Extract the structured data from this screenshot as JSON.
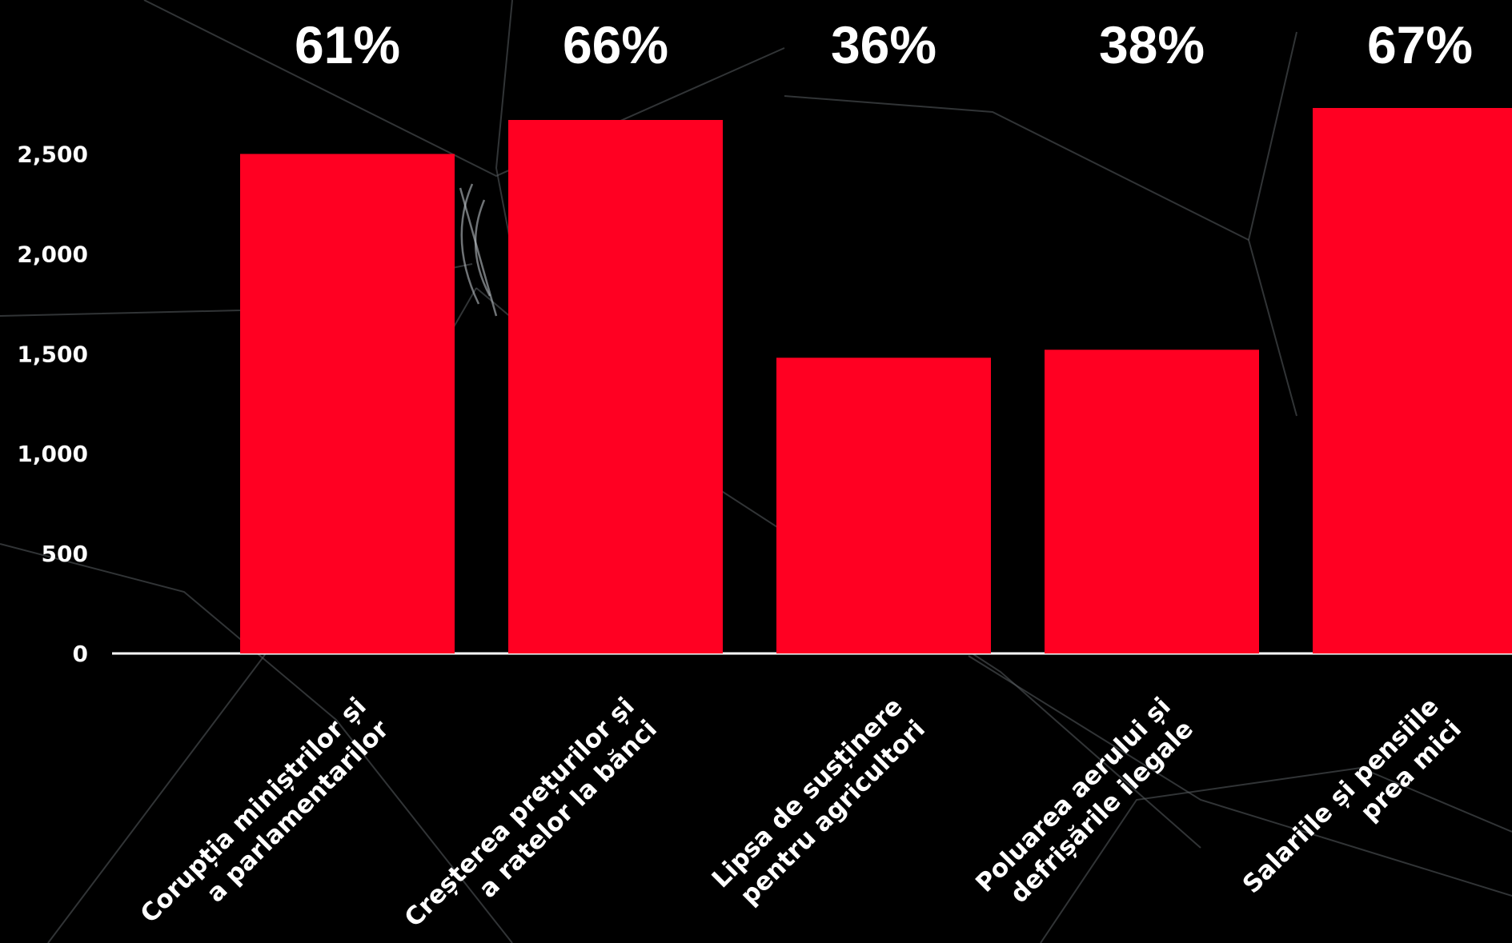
{
  "chart_data": {
    "type": "bar",
    "categories": [
      [
        "Corupția miniștrilor și",
        "a parlamentarilor"
      ],
      [
        "Creșterea prețurilor și",
        "a ratelor la bănci"
      ],
      [
        "Lipsa de susținere",
        "pentru agricultori"
      ],
      [
        "Poluarea aerului și",
        "defrișările ilegale"
      ],
      [
        "Salariile și pensiile",
        "prea mici"
      ]
    ],
    "values": [
      2500,
      2670,
      1480,
      1520,
      2730
    ],
    "data_labels": [
      "61%",
      "66%",
      "36%",
      "38%",
      "67%"
    ],
    "y_ticks": [
      0,
      500,
      1000,
      1500,
      2000,
      2500
    ],
    "y_tick_labels": [
      "0",
      "500",
      "1,000",
      "1,500",
      "2,000",
      "2,500"
    ],
    "ylim": [
      0,
      2730
    ],
    "grid": false,
    "legend": "none",
    "bar_color": "#ff0022",
    "background_color": "#000000",
    "text_color": "#ffffff"
  }
}
